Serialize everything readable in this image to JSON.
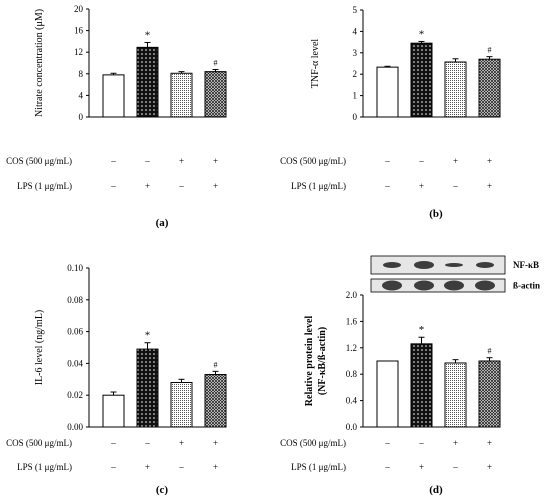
{
  "chart_data": [
    {
      "id": "a",
      "type": "bar",
      "panel_label": "(a)",
      "categories": [
        "Control",
        "LPS",
        "COS",
        "COS + LPS"
      ],
      "values": [
        7.8,
        12.9,
        8.1,
        8.4
      ],
      "errors": [
        0.3,
        0.9,
        0.3,
        0.4
      ],
      "markers": [
        "",
        "*",
        "",
        "#"
      ],
      "ylabel": "Nitrate concentration (μM)",
      "ylim": [
        0,
        20
      ],
      "yticks": [
        "0",
        "4",
        "8",
        "12",
        "16",
        "20"
      ]
    },
    {
      "id": "b",
      "type": "bar",
      "panel_label": "(b)",
      "categories": [
        "Control",
        "LPS",
        "COS",
        "COS + LPS"
      ],
      "values": [
        2.33,
        3.45,
        2.57,
        2.7
      ],
      "errors": [
        0.04,
        0.08,
        0.15,
        0.12
      ],
      "markers": [
        "",
        "*",
        "",
        "#"
      ],
      "ylabel": "TNF-α level",
      "ylim": [
        0,
        5
      ],
      "yticks": [
        "0",
        "1",
        "2",
        "3",
        "4",
        "5"
      ]
    },
    {
      "id": "c",
      "type": "bar",
      "panel_label": "(c)",
      "categories": [
        "Control",
        "LPS",
        "COS",
        "COS + LPS"
      ],
      "values": [
        0.02,
        0.049,
        0.028,
        0.033
      ],
      "errors": [
        0.002,
        0.004,
        0.002,
        0.002
      ],
      "markers": [
        "",
        "*",
        "",
        "#"
      ],
      "ylabel": "IL-6 level (ng/mL)",
      "ylim": [
        0,
        0.1
      ],
      "yticks": [
        "0.00",
        "0.02",
        "0.04",
        "0.06",
        "0.08",
        "0.10"
      ]
    },
    {
      "id": "d",
      "type": "bar",
      "panel_label": "(d)",
      "categories": [
        "Control",
        "LPS",
        "COS",
        "COS + LPS"
      ],
      "values": [
        1.0,
        1.26,
        0.97,
        1.0
      ],
      "errors": [
        0.0,
        0.1,
        0.05,
        0.05
      ],
      "markers": [
        "",
        "*",
        "",
        "#"
      ],
      "ylabel": "Relative protein level",
      "ylabel2": "(NF-κB/ß-actin)",
      "ylim": [
        0,
        2
      ],
      "yticks": [
        "0.0",
        "0.4",
        "0.8",
        "1.2",
        "1.6",
        "2.0"
      ],
      "blot_labels": [
        "NF-κB",
        "ß-actin"
      ]
    }
  ],
  "treatments": {
    "cos_label": "COS (500 μg/mL)",
    "lps_label": "LPS (1 μg/mL)",
    "cos_signs": [
      "–",
      "–",
      "+",
      "+"
    ],
    "lps_signs": [
      "–",
      "+",
      "–",
      "+"
    ]
  },
  "colors": {
    "bar_stroke": "#000000",
    "axis": "#000000",
    "background": "#ffffff"
  }
}
